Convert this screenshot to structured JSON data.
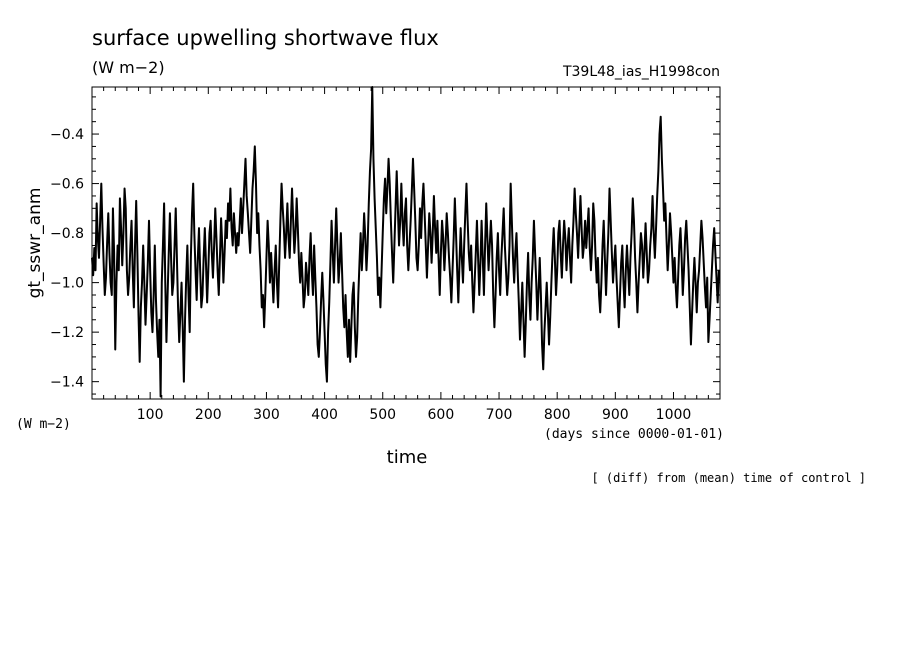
{
  "chart_data": {
    "type": "line",
    "title": "surface upwelling shortwave flux",
    "units_label": "(W m−2)",
    "run_name": "T39L48_ias_H1998con",
    "ylabel": "gt_sswr_anm",
    "y_units": "(W m−2)",
    "xlabel": "time",
    "x_units": "(days since 0000-01-01)",
    "note": "[ (diff) from (mean) time of control ]",
    "xlim": [
      0,
      1080
    ],
    "ylim": [
      -1.47,
      -0.21
    ],
    "x_ticks": [
      100,
      200,
      300,
      400,
      500,
      600,
      700,
      800,
      900,
      1000
    ],
    "y_ticks": [
      -1.4,
      -1.2,
      -1.0,
      -0.8,
      -0.6,
      -0.4
    ],
    "y_tick_labels": [
      "−1.4",
      "−1.2",
      "−1.0",
      "−0.8",
      "−0.6",
      "−0.4"
    ],
    "grid": false,
    "line_color": "#000000",
    "x_step": 2,
    "series": [
      {
        "values": [
          -0.9,
          -0.97,
          -0.86,
          -0.95,
          -0.68,
          -0.82,
          -0.9,
          -0.75,
          -0.6,
          -0.78,
          -0.92,
          -1.05,
          -0.98,
          -0.84,
          -0.72,
          -0.88,
          -1.0,
          -1.05,
          -0.7,
          -0.88,
          -1.27,
          -1.0,
          -0.85,
          -0.95,
          -0.66,
          -0.78,
          -0.93,
          -0.8,
          -0.62,
          -0.7,
          -0.95,
          -1.05,
          -0.98,
          -0.85,
          -0.75,
          -0.95,
          -1.1,
          -0.85,
          -0.67,
          -0.88,
          -1.13,
          -1.32,
          -1.1,
          -1.0,
          -0.85,
          -1.0,
          -1.17,
          -1.05,
          -0.92,
          -0.75,
          -0.95,
          -1.12,
          -1.2,
          -1.05,
          -0.85,
          -1.07,
          -1.2,
          -1.3,
          -1.15,
          -1.46,
          -1.0,
          -0.85,
          -0.68,
          -1.0,
          -1.24,
          -1.05,
          -0.88,
          -0.72,
          -0.9,
          -1.05,
          -1.0,
          -0.85,
          -0.7,
          -0.9,
          -1.1,
          -1.24,
          -1.12,
          -1.0,
          -1.18,
          -1.4,
          -1.15,
          -0.98,
          -0.85,
          -1.05,
          -1.2,
          -0.9,
          -0.72,
          -0.6,
          -0.8,
          -0.95,
          -1.07,
          -0.9,
          -0.78,
          -0.95,
          -1.1,
          -1.05,
          -0.9,
          -0.78,
          -0.92,
          -1.08,
          -0.95,
          -0.8,
          -0.75,
          -0.88,
          -0.98,
          -0.85,
          -0.7,
          -0.82,
          -0.95,
          -1.05,
          -0.9,
          -0.74,
          -0.85,
          -1.0,
          -0.88,
          -0.75,
          -0.82,
          -0.68,
          -0.75,
          -0.62,
          -0.78,
          -0.85,
          -0.72,
          -0.8,
          -0.88,
          -0.8,
          -0.85,
          -0.76,
          -0.66,
          -0.8,
          -0.7,
          -0.6,
          -0.5,
          -0.65,
          -0.72,
          -0.8,
          -0.88,
          -0.75,
          -0.62,
          -0.55,
          -0.45,
          -0.6,
          -0.8,
          -0.72,
          -0.85,
          -0.95,
          -1.1,
          -1.05,
          -1.18,
          -1.05,
          -0.9,
          -0.75,
          -0.85,
          -1.0,
          -0.88,
          -0.98,
          -1.08,
          -0.95,
          -0.85,
          -1.0,
          -1.1,
          -0.92,
          -0.75,
          -0.6,
          -0.7,
          -0.78,
          -0.9,
          -0.8,
          -0.68,
          -0.82,
          -0.9,
          -0.75,
          -0.62,
          -0.75,
          -0.88,
          -0.8,
          -0.66,
          -0.78,
          -0.92,
          -1.0,
          -0.88,
          -0.98,
          -1.1,
          -1.05,
          -0.92,
          -0.98,
          -1.05,
          -0.9,
          -0.8,
          -0.95,
          -1.05,
          -0.85,
          -0.98,
          -1.1,
          -1.25,
          -1.3,
          -1.2,
          -1.07,
          -0.96,
          -1.07,
          -1.2,
          -1.33,
          -1.4,
          -1.2,
          -1.08,
          -0.92,
          -0.75,
          -0.88,
          -1.0,
          -0.85,
          -0.7,
          -0.85,
          -1.0,
          -0.92,
          -0.8,
          -0.95,
          -1.1,
          -1.18,
          -1.05,
          -1.2,
          -1.3,
          -1.15,
          -1.32,
          -1.18,
          -1.05,
          -1.0,
          -1.18,
          -1.3,
          -1.22,
          -1.05,
          -0.92,
          -0.8,
          -0.95,
          -0.85,
          -0.72,
          -0.82,
          -0.95,
          -0.85,
          -0.68,
          -0.55,
          -0.46,
          -0.2,
          -0.5,
          -0.66,
          -0.78,
          -0.9,
          -1.05,
          -0.98,
          -1.1,
          -0.95,
          -0.8,
          -0.66,
          -0.58,
          -0.72,
          -0.62,
          -0.5,
          -0.6,
          -0.75,
          -0.88,
          -1.0,
          -0.85,
          -0.7,
          -0.55,
          -0.7,
          -0.85,
          -0.75,
          -0.6,
          -0.75,
          -0.85,
          -0.72,
          -0.66,
          -0.85,
          -0.95,
          -0.85,
          -0.75,
          -0.63,
          -0.5,
          -0.62,
          -0.75,
          -0.9,
          -0.95,
          -0.85,
          -0.7,
          -0.82,
          -0.68,
          -0.6,
          -0.72,
          -0.85,
          -0.98,
          -0.85,
          -0.72,
          -0.8,
          -0.92,
          -0.8,
          -0.65,
          -0.78,
          -0.88,
          -0.75,
          -0.9,
          -1.05,
          -0.88,
          -0.75,
          -0.82,
          -0.95,
          -0.85,
          -0.72,
          -0.8,
          -0.9,
          -0.98,
          -1.08,
          -0.95,
          -0.82,
          -0.66,
          -0.8,
          -0.95,
          -1.08,
          -0.92,
          -0.78,
          -0.9,
          -1.0,
          -0.85,
          -0.72,
          -0.6,
          -0.75,
          -0.88,
          -0.95,
          -0.85,
          -1.0,
          -1.12,
          -1.0,
          -0.88,
          -0.75,
          -0.9,
          -1.05,
          -0.92,
          -0.75,
          -0.9,
          -1.05,
          -0.85,
          -0.68,
          -0.82,
          -0.95,
          -0.85,
          -0.75,
          -0.85,
          -1.05,
          -1.18,
          -1.05,
          -0.9,
          -0.8,
          -0.95,
          -1.05,
          -0.9,
          -0.8,
          -0.7,
          -0.85,
          -0.95,
          -1.05,
          -0.98,
          -0.85,
          -0.6,
          -0.75,
          -0.9,
          -1.0,
          -0.88,
          -0.8,
          -0.95,
          -1.08,
          -1.23,
          -1.12,
          -1.0,
          -1.15,
          -1.3,
          -1.16,
          -1.0,
          -0.88,
          -1.05,
          -1.15,
          -1.0,
          -0.9,
          -0.75,
          -0.88,
          -1.0,
          -1.15,
          -1.03,
          -0.9,
          -1.05,
          -1.25,
          -1.35,
          -1.2,
          -1.1,
          -1.0,
          -1.12,
          -1.25,
          -1.14,
          -1.0,
          -0.88,
          -0.78,
          -0.9,
          -1.05,
          -0.95,
          -0.8,
          -0.75,
          -0.88,
          -0.98,
          -0.85,
          -0.75,
          -0.82,
          -0.95,
          -0.85,
          -0.78,
          -0.9,
          -1.0,
          -0.85,
          -0.75,
          -0.62,
          -0.72,
          -0.8,
          -0.9,
          -0.78,
          -0.65,
          -0.78,
          -0.9,
          -0.85,
          -0.75,
          -0.86,
          -0.78,
          -0.7,
          -0.86,
          -0.95,
          -0.85,
          -0.68,
          -0.75,
          -0.9,
          -1.0,
          -0.9,
          -1.05,
          -1.12,
          -1.0,
          -0.85,
          -0.75,
          -0.9,
          -1.05,
          -0.92,
          -0.8,
          -0.62,
          -0.75,
          -0.88,
          -1.0,
          -0.92,
          -0.85,
          -0.98,
          -1.08,
          -1.18,
          -1.05,
          -0.92,
          -0.85,
          -1.0,
          -1.1,
          -0.95,
          -0.85,
          -0.95,
          -1.05,
          -0.9,
          -0.8,
          -0.66,
          -0.75,
          -0.9,
          -1.0,
          -1.12,
          -1.0,
          -0.9,
          -0.8,
          -0.85,
          -0.98,
          -0.88,
          -0.76,
          -0.88,
          -1.0,
          -0.95,
          -0.85,
          -0.78,
          -0.65,
          -0.8,
          -0.9,
          -0.78,
          -0.65,
          -0.55,
          -0.4,
          -0.33,
          -0.5,
          -0.62,
          -0.75,
          -0.68,
          -0.82,
          -0.95,
          -0.85,
          -0.72,
          -0.8,
          -0.9,
          -1.0,
          -0.9,
          -1.02,
          -1.1,
          -0.98,
          -0.85,
          -0.78,
          -0.9,
          -1.05,
          -0.95,
          -0.82,
          -0.75,
          -0.85,
          -0.95,
          -1.1,
          -1.25,
          -1.12,
          -1.0,
          -0.9,
          -1.0,
          -1.12,
          -1.0,
          -0.95,
          -0.85,
          -0.75,
          -0.82,
          -0.92,
          -1.02,
          -1.1,
          -0.98,
          -1.24,
          -1.15,
          -1.05,
          -0.95,
          -0.85,
          -0.78,
          -0.88,
          -0.98,
          -1.08,
          -0.95
        ]
      }
    ]
  }
}
